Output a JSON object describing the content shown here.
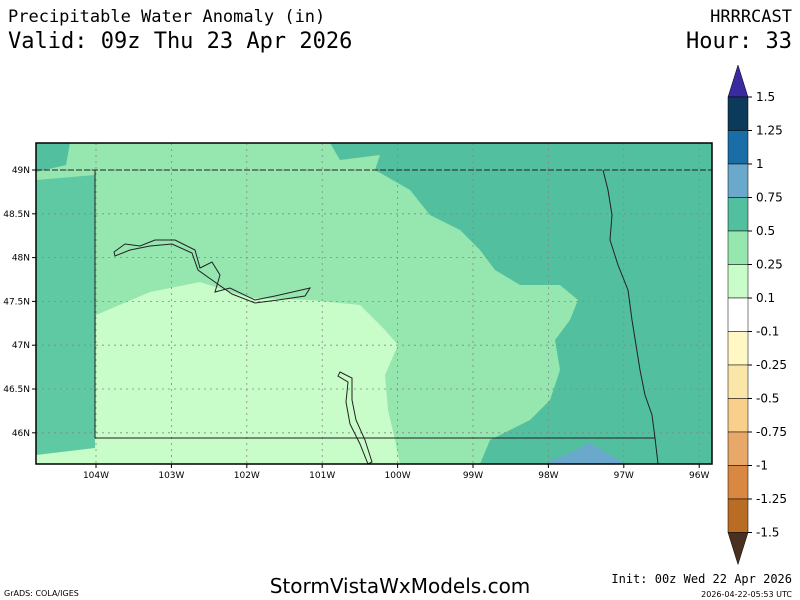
{
  "header": {
    "title": "Precipitable Water Anomaly (in)",
    "valid": "Valid: 09z Thu 23 Apr 2026",
    "model": "HRRRCAST",
    "hour": "Hour: 33"
  },
  "map": {
    "lat_labels": [
      "49N",
      "48.5N",
      "48N",
      "47.5N",
      "47N",
      "46.5N",
      "46N"
    ],
    "lon_labels": [
      "104W",
      "103W",
      "102W",
      "101W",
      "100W",
      "99W",
      "98W",
      "97W",
      "96W"
    ]
  },
  "colorbar": {
    "levels": [
      "1.5",
      "1.25",
      "1",
      "0.75",
      "0.5",
      "0.25",
      "0.1",
      "-0.1",
      "-0.25",
      "-0.5",
      "-0.75",
      "-1",
      "-1.25",
      "-1.5"
    ],
    "colors": [
      "#3a2aa0",
      "#0b3a5a",
      "#1a6ea8",
      "#6aa8cc",
      "#52bf9f",
      "#96e6b0",
      "#c8fcc8",
      "#ffffff",
      "#fff7c4",
      "#fae6a8",
      "#f8d08c",
      "#e8a868",
      "#d88840",
      "#b86c24",
      "#4a3020"
    ]
  },
  "footer": {
    "credit": "GrADS: COLA/IGES",
    "site": "StormVistaWxModels.com",
    "init": "Init: 00z Wed 22 Apr 2026",
    "timestamp": "2026-04-22-05:53 UTC"
  }
}
